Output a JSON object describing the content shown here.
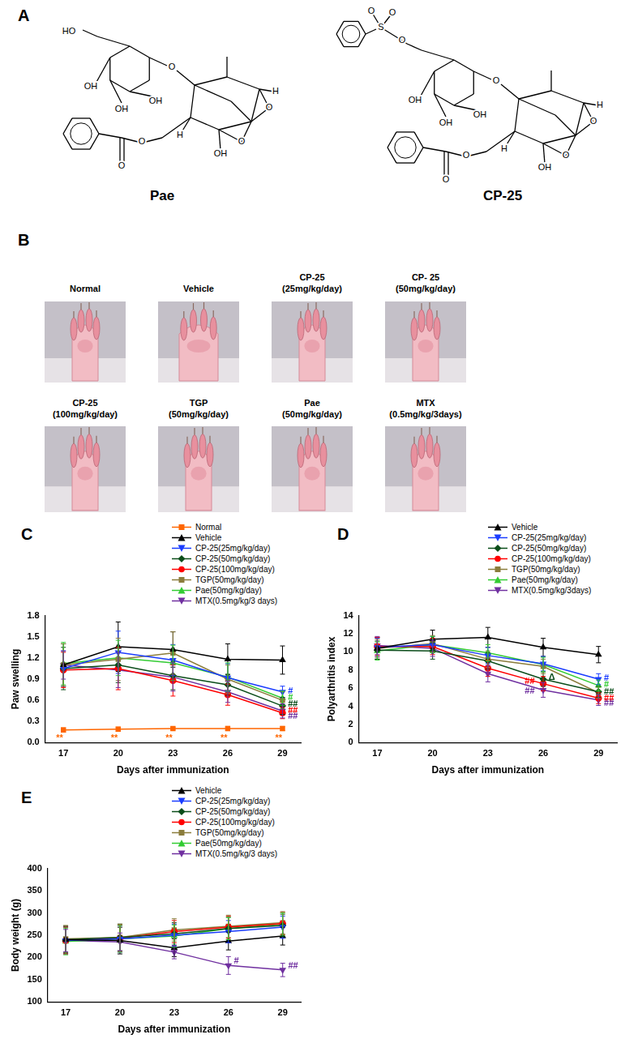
{
  "panel_A": {
    "label": "A",
    "structures": [
      {
        "name": "Pae",
        "atoms": [
          "HO",
          "OH",
          "OH",
          "OH",
          "O",
          "O",
          "O",
          "OH",
          "H",
          "H",
          "O",
          "O"
        ]
      },
      {
        "name": "CP-25",
        "atoms": [
          "O",
          "S",
          "O",
          "O",
          "OH",
          "OH",
          "OH",
          "O",
          "O",
          "O",
          "OH",
          "H",
          "H",
          "O",
          "O"
        ]
      }
    ]
  },
  "panel_B": {
    "label": "B",
    "photos": [
      {
        "caption": [
          "Normal"
        ]
      },
      {
        "caption": [
          "Vehicle"
        ]
      },
      {
        "caption": [
          "CP-25",
          "(25mg/kg/day)"
        ]
      },
      {
        "caption": [
          "CP- 25",
          "(50mg/kg/day)"
        ]
      },
      {
        "caption": [
          "CP-25",
          "(100mg/kg/day)"
        ]
      },
      {
        "caption": [
          "TGP",
          "(50mg/kg/day)"
        ]
      },
      {
        "caption": [
          "Pae",
          "(50mg/kg/day)"
        ]
      },
      {
        "caption": [
          "MTX",
          "(0.5mg/kg/3days)"
        ]
      }
    ]
  },
  "chart_data": [
    {
      "label": "C",
      "type": "line",
      "x_label": "Days after immunization",
      "y_label": "Paw swelling",
      "x": [
        17,
        20,
        23,
        26,
        29
      ],
      "xlim": [
        16,
        30
      ],
      "xticks": [
        17,
        20,
        23,
        26,
        29
      ],
      "ylim": [
        0,
        1.8
      ],
      "yticks": [
        {
          "value": 0,
          "label": "0.0"
        },
        0.3,
        0.6,
        0.9,
        1.2,
        1.5,
        1.8
      ],
      "grid": false,
      "legend": "top-right",
      "series": [
        {
          "name": "Normal",
          "color": "#ff6600",
          "marker": "square",
          "values": [
            0.18,
            0.19,
            0.2,
            0.2,
            0.2
          ],
          "errors": [
            0.03,
            0.03,
            0.02,
            0.03,
            0.03
          ]
        },
        {
          "name": "Vehicle",
          "color": "#000000",
          "marker": "triangle",
          "values": [
            1.1,
            1.36,
            1.32,
            1.18,
            1.17
          ],
          "errors": [
            0.3,
            0.35,
            0.25,
            0.22,
            0.2
          ]
        },
        {
          "name": "CP-25(25mg/kg/day)",
          "color": "#1a3cff",
          "marker": "triangle-down",
          "values": [
            1.05,
            1.28,
            1.17,
            0.92,
            0.72
          ],
          "errors": [
            0.25,
            0.3,
            0.22,
            0.2,
            0.08
          ]
        },
        {
          "name": "CP-25(50mg/kg/day)",
          "color": "#0b4d1a",
          "marker": "diamond",
          "values": [
            1.05,
            1.1,
            0.95,
            0.82,
            0.52
          ],
          "errors": [
            0.3,
            0.25,
            0.2,
            0.15,
            0.12
          ]
        },
        {
          "name": "CP-25(100mg/kg/day)",
          "color": "#ff0000",
          "marker": "circle",
          "values": [
            1.03,
            1.05,
            0.88,
            0.68,
            0.42
          ],
          "errors": [
            0.25,
            0.3,
            0.22,
            0.15,
            0.08
          ]
        },
        {
          "name": "TGP(50mg/kg/day)",
          "color": "#8b7d3c",
          "marker": "square",
          "values": [
            1.1,
            1.18,
            1.27,
            0.9,
            0.6
          ],
          "errors": [
            0.3,
            0.3,
            0.3,
            0.2,
            0.12
          ]
        },
        {
          "name": "Pae(50mg/kg/day)",
          "color": "#33cc33",
          "marker": "triangle",
          "values": [
            1.12,
            1.2,
            1.13,
            0.93,
            0.63
          ],
          "errors": [
            0.3,
            0.25,
            0.25,
            0.2,
            0.1
          ]
        },
        {
          "name": "MTX(0.5mg/kg/3 days)",
          "color": "#7030a0",
          "marker": "triangle-down",
          "values": [
            1.1,
            1.03,
            0.93,
            0.72,
            0.45
          ],
          "errors": [
            0.2,
            0.25,
            0.2,
            0.15,
            0.1
          ]
        }
      ],
      "annotations": [
        {
          "text": "**",
          "x": 16.6,
          "y": 0.06,
          "color": "#ff6600"
        },
        {
          "text": "**",
          "x": 19.6,
          "y": 0.06,
          "color": "#ff6600"
        },
        {
          "text": "**",
          "x": 22.6,
          "y": 0.06,
          "color": "#ff6600"
        },
        {
          "text": "**",
          "x": 25.6,
          "y": 0.06,
          "color": "#ff6600"
        },
        {
          "text": "**",
          "x": 28.6,
          "y": 0.06,
          "color": "#ff6600"
        },
        {
          "text": "#",
          "x": 29.3,
          "y": 0.73,
          "color": "#1a3cff"
        },
        {
          "text": "#",
          "x": 29.3,
          "y": 0.64,
          "color": "#33cc33"
        },
        {
          "text": "##",
          "x": 29.3,
          "y": 0.54,
          "color": "#0b4d1a"
        },
        {
          "text": "##",
          "x": 29.3,
          "y": 0.45,
          "color": "#ff0000"
        },
        {
          "text": "##",
          "x": 29.3,
          "y": 0.37,
          "color": "#7030a0"
        }
      ]
    },
    {
      "label": "D",
      "type": "line",
      "x_label": "Days after immunization",
      "y_label": "Polyarthritis index",
      "x": [
        17,
        20,
        23,
        26,
        29
      ],
      "xlim": [
        16,
        30
      ],
      "xticks": [
        17,
        20,
        23,
        26,
        29
      ],
      "ylim": [
        0,
        14
      ],
      "yticks": [
        0,
        2,
        4,
        6,
        8,
        10,
        12,
        14
      ],
      "grid": false,
      "legend": "top-right",
      "series": [
        {
          "name": "Vehicle",
          "color": "#000000",
          "marker": "triangle",
          "values": [
            10.4,
            11.4,
            11.6,
            10.5,
            9.7
          ],
          "errors": [
            1.2,
            1.0,
            1.1,
            1.0,
            0.9
          ]
        },
        {
          "name": "CP-25(25mg/kg/day)",
          "color": "#1a3cff",
          "marker": "triangle-down",
          "values": [
            10.5,
            10.8,
            9.6,
            8.7,
            7.0
          ],
          "errors": [
            1.0,
            0.9,
            0.9,
            0.8,
            0.6
          ]
        },
        {
          "name": "CP-25(50mg/kg/day)",
          "color": "#0b4d1a",
          "marker": "diamond",
          "values": [
            10.2,
            10.1,
            9.0,
            7.0,
            5.6
          ],
          "errors": [
            1.0,
            0.9,
            0.9,
            0.8,
            0.6
          ]
        },
        {
          "name": "CP-25(100mg/kg/day)",
          "color": "#ff0000",
          "marker": "circle",
          "values": [
            10.6,
            10.6,
            8.2,
            6.5,
            4.9
          ],
          "errors": [
            1.0,
            0.9,
            0.9,
            0.8,
            0.6
          ]
        },
        {
          "name": "TGP(50mg/kg/day)",
          "color": "#8b7d3c",
          "marker": "square",
          "values": [
            10.4,
            10.9,
            9.2,
            8.4,
            5.5
          ],
          "errors": [
            1.0,
            0.9,
            0.9,
            0.8,
            0.6
          ]
        },
        {
          "name": "Pae(50mg/kg/day)",
          "color": "#33cc33",
          "marker": "triangle",
          "values": [
            10.1,
            10.8,
            9.9,
            8.6,
            6.3
          ],
          "errors": [
            1.0,
            0.9,
            0.9,
            0.8,
            0.6
          ]
        },
        {
          "name": "MTX(0.5mg/kg/3days)",
          "color": "#7030a0",
          "marker": "triangle-down",
          "values": [
            10.7,
            10.4,
            7.6,
            5.8,
            4.7
          ],
          "errors": [
            1.0,
            0.9,
            0.9,
            0.8,
            0.6
          ]
        }
      ],
      "annotations": [
        {
          "text": "##",
          "x": 25.0,
          "y": 6.7,
          "color": "#ff0000"
        },
        {
          "text": "##",
          "x": 25.0,
          "y": 5.7,
          "color": "#7030a0"
        },
        {
          "text": "Δ",
          "x": 26.3,
          "y": 7.2,
          "color": "#0b4d1a"
        },
        {
          "text": "#",
          "x": 29.3,
          "y": 7.1,
          "color": "#1a3cff"
        },
        {
          "text": "#",
          "x": 29.3,
          "y": 6.4,
          "color": "#33cc33"
        },
        {
          "text": "##",
          "x": 29.3,
          "y": 5.6,
          "color": "#0b4d1a"
        },
        {
          "text": "##",
          "x": 29.3,
          "y": 4.9,
          "color": "#ff0000"
        },
        {
          "text": "##",
          "x": 29.3,
          "y": 4.3,
          "color": "#7030a0"
        }
      ]
    },
    {
      "label": "E",
      "type": "line",
      "x_label": "Days after immunization",
      "y_label": "Body weight (g)",
      "x": [
        17,
        20,
        23,
        26,
        29
      ],
      "xlim": [
        16,
        30
      ],
      "xticks": [
        17,
        20,
        23,
        26,
        29
      ],
      "ylim": [
        100,
        400
      ],
      "yticks": [
        100,
        150,
        200,
        250,
        300,
        350,
        400
      ],
      "grid": false,
      "legend": "top-right",
      "series": [
        {
          "name": "Vehicle",
          "color": "#000000",
          "marker": "triangle",
          "values": [
            240,
            238,
            222,
            237,
            248
          ],
          "errors": [
            30,
            30,
            20,
            20,
            20
          ]
        },
        {
          "name": "CP-25(25mg/kg/day)",
          "color": "#1a3cff",
          "marker": "triangle-down",
          "values": [
            238,
            242,
            250,
            258,
            268
          ],
          "errors": [
            30,
            30,
            25,
            25,
            25
          ]
        },
        {
          "name": "CP-25(50mg/kg/day)",
          "color": "#0b4d1a",
          "marker": "diamond",
          "values": [
            240,
            245,
            253,
            265,
            272
          ],
          "errors": [
            30,
            30,
            25,
            25,
            25
          ]
        },
        {
          "name": "CP-25(100mg/kg/day)",
          "color": "#ff0000",
          "marker": "circle",
          "values": [
            238,
            243,
            258,
            268,
            276
          ],
          "errors": [
            30,
            30,
            25,
            25,
            25
          ]
        },
        {
          "name": "TGP(50mg/kg/day)",
          "color": "#8b7d3c",
          "marker": "square",
          "values": [
            242,
            245,
            262,
            270,
            278
          ],
          "errors": [
            30,
            30,
            25,
            25,
            25
          ]
        },
        {
          "name": "Pae(50mg/kg/day)",
          "color": "#33cc33",
          "marker": "triangle",
          "values": [
            236,
            242,
            248,
            265,
            275
          ],
          "errors": [
            30,
            30,
            25,
            25,
            25
          ]
        },
        {
          "name": "MTX(0.5mg/kg/3 days)",
          "color": "#7030a0",
          "marker": "triangle-down",
          "values": [
            238,
            235,
            212,
            182,
            172
          ],
          "errors": [
            25,
            20,
            15,
            20,
            15
          ]
        }
      ],
      "annotations": [
        {
          "text": "#",
          "x": 26.3,
          "y": 192,
          "color": "#7030a0"
        },
        {
          "text": "##",
          "x": 29.3,
          "y": 180,
          "color": "#7030a0"
        }
      ]
    }
  ]
}
